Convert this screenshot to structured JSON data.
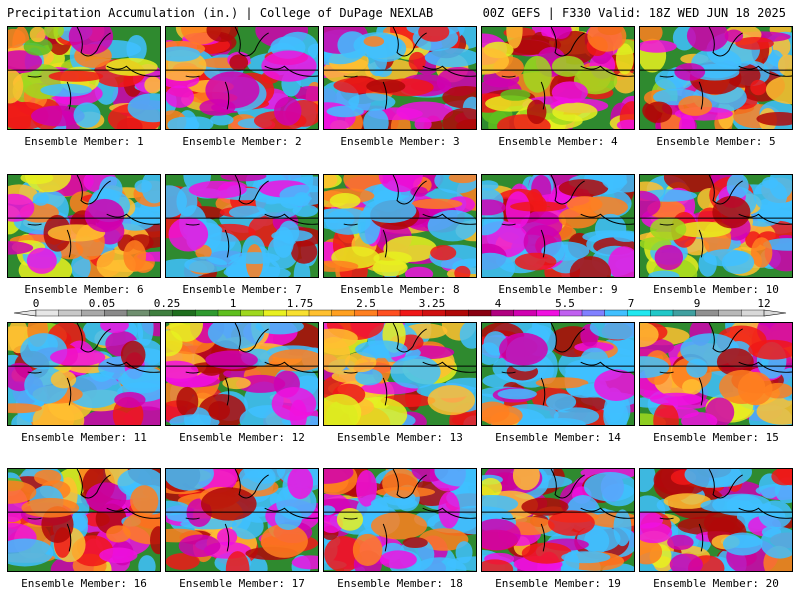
{
  "header": {
    "left": "Precipitation Accumulation (in.) | College of DuPage NEXLAB",
    "right": "00Z GEFS | F330 Valid: 18Z WED JUN 18 2025"
  },
  "members": [
    {
      "label": "Ensemble Member: 1",
      "tone": 0.45
    },
    {
      "label": "Ensemble Member: 2",
      "tone": 0.75
    },
    {
      "label": "Ensemble Member: 3",
      "tone": 0.6
    },
    {
      "label": "Ensemble Member: 4",
      "tone": 0.3
    },
    {
      "label": "Ensemble Member: 5",
      "tone": 0.5
    },
    {
      "label": "Ensemble Member: 6",
      "tone": 0.65
    },
    {
      "label": "Ensemble Member: 7",
      "tone": 0.85
    },
    {
      "label": "Ensemble Member: 8",
      "tone": 0.55
    },
    {
      "label": "Ensemble Member: 9",
      "tone": 0.7
    },
    {
      "label": "Ensemble Member: 10",
      "tone": 0.6
    },
    {
      "label": "Ensemble Member: 11",
      "tone": 0.55
    },
    {
      "label": "Ensemble Member: 12",
      "tone": 0.6
    },
    {
      "label": "Ensemble Member: 13",
      "tone": 0.45
    },
    {
      "label": "Ensemble Member: 14",
      "tone": 0.8
    },
    {
      "label": "Ensemble Member: 15",
      "tone": 0.5
    },
    {
      "label": "Ensemble Member: 16",
      "tone": 0.5
    },
    {
      "label": "Ensemble Member: 17",
      "tone": 0.75
    },
    {
      "label": "Ensemble Member: 18",
      "tone": 0.75
    },
    {
      "label": "Ensemble Member: 19",
      "tone": 0.75
    },
    {
      "label": "Ensemble Member: 20",
      "tone": 0.7
    }
  ],
  "legend": {
    "ticks": [
      "0",
      "0.05",
      "0.25",
      "1",
      "1.75",
      "2.5",
      "3.25",
      "4",
      "5.5",
      "7",
      "9",
      "12"
    ],
    "colors": [
      "#e6e6e6",
      "#c8c8c8",
      "#a8a8a8",
      "#8a8a8a",
      "#6f8f6f",
      "#3f7f3f",
      "#1f6f1f",
      "#2f9a2f",
      "#5fbf1f",
      "#9fd81f",
      "#e8f020",
      "#f8e030",
      "#ffc030",
      "#ffa020",
      "#ff7f20",
      "#ff4f20",
      "#f01818",
      "#d01010",
      "#b00808",
      "#8a0010",
      "#b0007f",
      "#d000b0",
      "#f010e0",
      "#c060f0",
      "#8080ff",
      "#40c0ff",
      "#20e8f0",
      "#20c8c8",
      "#40a0a0",
      "#909090",
      "#b8b8b8",
      "#d8d8d8"
    ]
  }
}
